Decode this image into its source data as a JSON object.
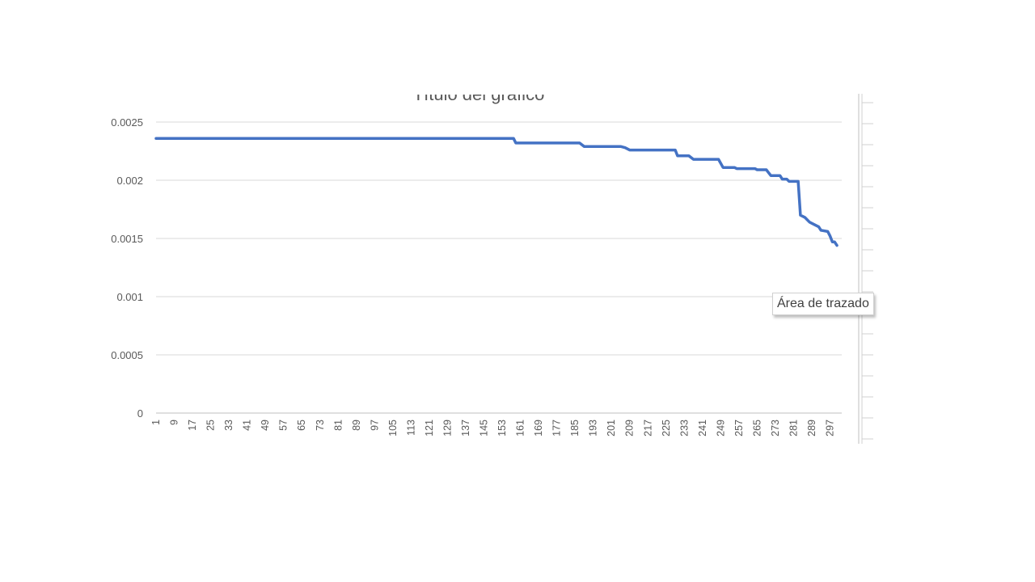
{
  "chart_data": {
    "type": "line",
    "title": "Título del gráfico",
    "xlabel": "",
    "ylabel": "",
    "ylim": [
      0,
      0.0025
    ],
    "y_ticks": [
      "0",
      "0.0005",
      "0.001",
      "0.0015",
      "0.002",
      "0.0025"
    ],
    "x_range": [
      1,
      300
    ],
    "x_tick_labels": [
      "1",
      "9",
      "17",
      "25",
      "33",
      "41",
      "49",
      "57",
      "65",
      "73",
      "81",
      "89",
      "97",
      "105",
      "113",
      "121",
      "129",
      "137",
      "145",
      "153",
      "161",
      "169",
      "177",
      "185",
      "193",
      "201",
      "209",
      "217",
      "225",
      "233",
      "241",
      "249",
      "257",
      "265",
      "273",
      "281",
      "289",
      "297"
    ],
    "grid": "horizontal",
    "legend": "none",
    "series": [
      {
        "color": "#4472c4",
        "points": [
          [
            1,
            0.00236
          ],
          [
            158,
            0.00236
          ],
          [
            159,
            0.00232
          ],
          [
            187,
            0.00232
          ],
          [
            189,
            0.00229
          ],
          [
            205,
            0.00229
          ],
          [
            207,
            0.00228
          ],
          [
            209,
            0.00226
          ],
          [
            229,
            0.00226
          ],
          [
            230,
            0.00221
          ],
          [
            235,
            0.00221
          ],
          [
            237,
            0.00218
          ],
          [
            248,
            0.00218
          ],
          [
            250,
            0.00211
          ],
          [
            255,
            0.00211
          ],
          [
            256,
            0.0021
          ],
          [
            264,
            0.0021
          ],
          [
            265,
            0.00209
          ],
          [
            269,
            0.00209
          ],
          [
            271,
            0.00204
          ],
          [
            275,
            0.00204
          ],
          [
            276,
            0.00201
          ],
          [
            278,
            0.00201
          ],
          [
            279,
            0.00199
          ],
          [
            283,
            0.00199
          ],
          [
            284,
            0.0017
          ],
          [
            286,
            0.00168
          ],
          [
            288,
            0.00164
          ],
          [
            290,
            0.00162
          ],
          [
            292,
            0.0016
          ],
          [
            293,
            0.00157
          ],
          [
            296,
            0.00156
          ],
          [
            297,
            0.00152
          ],
          [
            298,
            0.00147
          ],
          [
            299,
            0.00147
          ],
          [
            300,
            0.00144
          ]
        ]
      }
    ]
  },
  "tooltip": {
    "text": "Área de trazado"
  }
}
